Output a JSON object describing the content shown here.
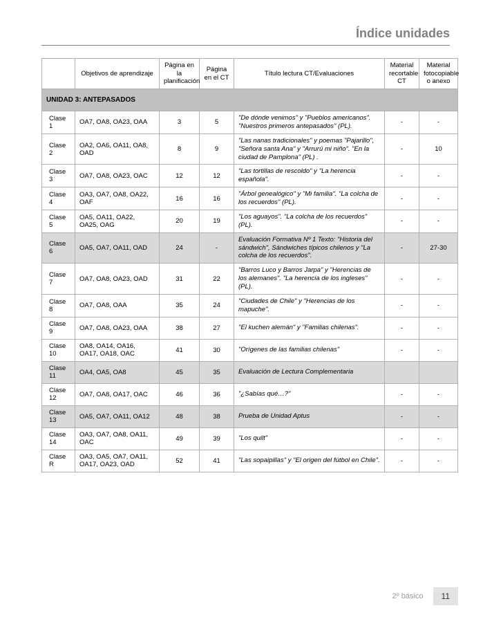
{
  "header": {
    "title": "Índice unidades"
  },
  "table": {
    "headers": {
      "col0": "",
      "col1": "Objetivos de aprendizaje",
      "col2": "Página en la planificación",
      "col3": "Página en el CT",
      "col4": "Título lectura CT/Evaluaciones",
      "col5": "Material recortable CT",
      "col6": "Material fotocopiable o anexo"
    },
    "unit_label": "UNIDAD 3: ANTEPASADOS",
    "rows": [
      {
        "clase": "Clase 1",
        "obj": "OA7, OA8, OA23, OAA",
        "plan": "3",
        "ct": "5",
        "titulo": "\"De dónde venimos\" y \"Pueblos americanos\". \"Nuestros primeros antepasados\" (PL).",
        "rec": "-",
        "anexo": "-",
        "shade": false
      },
      {
        "clase": "Clase 2",
        "obj": "OA2, OA6, OA11, OA8, OAD",
        "plan": "8",
        "ct": "9",
        "titulo": "\"Las nanas tradicionales\" y poemas \"Pajarillo\", \"Señora santa Ana\" y \"Arrurú mi niño\". \"En la ciudad de Pamplona\" (PL) .",
        "rec": "-",
        "anexo": "10",
        "shade": false
      },
      {
        "clase": "Clase 3",
        "obj": "OA7, OA8, OA23, OAC",
        "plan": "12",
        "ct": "12",
        "titulo": "\"Las tortillas de rescoldo\" y \"La herencia española\".",
        "rec": "-",
        "anexo": "-",
        "shade": false
      },
      {
        "clase": "Clase 4",
        "obj": "OA3, OA7, OA8, OA22, OAF",
        "plan": "16",
        "ct": "16",
        "titulo": "\"Árbol genealógico\" y \"Mi familia\". \"La colcha de los recuerdos\" (PL).",
        "rec": "-",
        "anexo": "-",
        "shade": false
      },
      {
        "clase": "Clase 5",
        "obj": "OA5, OA11, OA22, OA25, OAG",
        "plan": "20",
        "ct": "19",
        "titulo": "\"Los aguayos\". \"La colcha de los recuerdos\" (PL).",
        "rec": "-",
        "anexo": "-",
        "shade": false
      },
      {
        "clase": "Clase 6",
        "obj": "OA5, OA7, OA11, OAD",
        "plan": "24",
        "ct": "-",
        "titulo": "Evaluación Formativa Nº 1 Texto: \"Historia del sándwich\", Sándwiches típicos chilenos y \"La colcha de los recuerdos\".",
        "rec": "-",
        "anexo": "27-30",
        "shade": true
      },
      {
        "clase": "Clase 7",
        "obj": "OA7, OA8, OA23, OAD",
        "plan": "31",
        "ct": "22",
        "titulo": "\"Barros Luco y Barros Jarpa\" y \"Herencias de los alemanes\". \"La herencia de los ingleses\" (PL).",
        "rec": "-",
        "anexo": "-",
        "shade": false
      },
      {
        "clase": "Clase 8",
        "obj": "OA7, OA8, OAA",
        "plan": "35",
        "ct": "24",
        "titulo": "\"Ciudades de Chile\" y \"Herencias de los mapuche\".",
        "rec": "-",
        "anexo": "-",
        "shade": false
      },
      {
        "clase": "Clase 9",
        "obj": "OA7, OA8, OA23, OAA",
        "plan": "38",
        "ct": "27",
        "titulo": "\"El kuchen alemán\" y \"Familias chilenas\".",
        "rec": "-",
        "anexo": "-",
        "shade": false
      },
      {
        "clase": "Clase 10",
        "obj": "OA8, OA14, OA16, OA17, OA18, OAC",
        "plan": "41",
        "ct": "30",
        "titulo": "\"Orígenes de las familias chilenas\"",
        "rec": "-",
        "anexo": "-",
        "shade": false
      },
      {
        "clase": "Clase 11",
        "obj": "OA4, OA5, OA8",
        "plan": "45",
        "ct": "35",
        "titulo": "Evaluación de Lectura Complementaria",
        "rec": "",
        "anexo": "",
        "shade": true
      },
      {
        "clase": "Clase 12",
        "obj": "OA7, OA8, OA17, OAC",
        "plan": "46",
        "ct": "36",
        "titulo": "\"¿Sabías qué…?\"",
        "rec": "-",
        "anexo": "-",
        "shade": false
      },
      {
        "clase": "Clase 13",
        "obj": "OA5, OA7, OA11, OA12",
        "plan": "48",
        "ct": "38",
        "titulo": "Prueba de Unidad Aptus",
        "rec": "-",
        "anexo": "-",
        "shade": true
      },
      {
        "clase": "Clase 14",
        "obj": "OA3, OA7, OA8, OA11, OAC",
        "plan": "49",
        "ct": "39",
        "titulo": "\"Los quilt\"",
        "rec": "-",
        "anexo": "-",
        "shade": false
      },
      {
        "clase": "Clase R",
        "obj": "OA3, OA5, OA7, OA11, OA17, OA23, OAD",
        "plan": "52",
        "ct": "41",
        "titulo": "\"Las sopaipillas\" y \"El origen del fútbol en Chile\".",
        "rec": "-",
        "anexo": "-",
        "shade": false
      }
    ]
  },
  "footer": {
    "grade": "2º básico",
    "page": "11"
  }
}
